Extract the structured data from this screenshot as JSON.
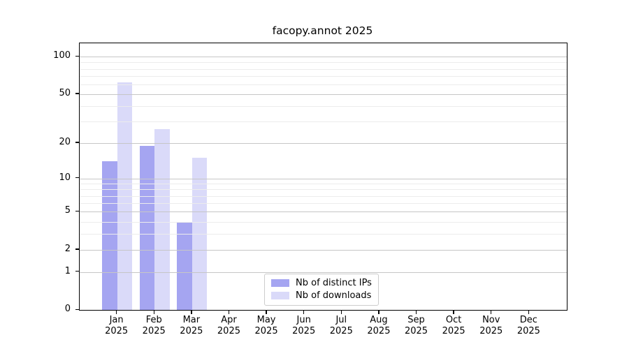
{
  "title": "facopy.annot 2025",
  "chart_data": {
    "type": "bar",
    "title": "facopy.annot 2025",
    "categories": [
      "Jan",
      "Feb",
      "Mar",
      "Apr",
      "May",
      "Jun",
      "Jul",
      "Aug",
      "Sep",
      "Oct",
      "Nov",
      "Dec"
    ],
    "x_year_label": "2025",
    "series": [
      {
        "name": "Nb of distinct IPs",
        "color": "#a5a5f1",
        "values": [
          14,
          19,
          4,
          0,
          0,
          0,
          0,
          0,
          0,
          0,
          0,
          0
        ]
      },
      {
        "name": "Nb of downloads",
        "color": "#dadaf9",
        "values": [
          62,
          26,
          15,
          0,
          0,
          0,
          0,
          0,
          0,
          0,
          0,
          0
        ]
      }
    ],
    "y_scale": "log10(value+1)",
    "y_ticks": [
      0,
      1,
      2,
      5,
      10,
      20,
      50,
      100
    ],
    "y_minor_ticks": [
      3,
      4,
      6,
      7,
      8,
      9,
      30,
      40,
      60,
      70,
      80,
      90
    ],
    "ylim": [
      0,
      129
    ],
    "xlabel": "",
    "ylabel": "",
    "legend_position": "lower center",
    "grid": "horizontal, major and minor, drawn above bars"
  }
}
